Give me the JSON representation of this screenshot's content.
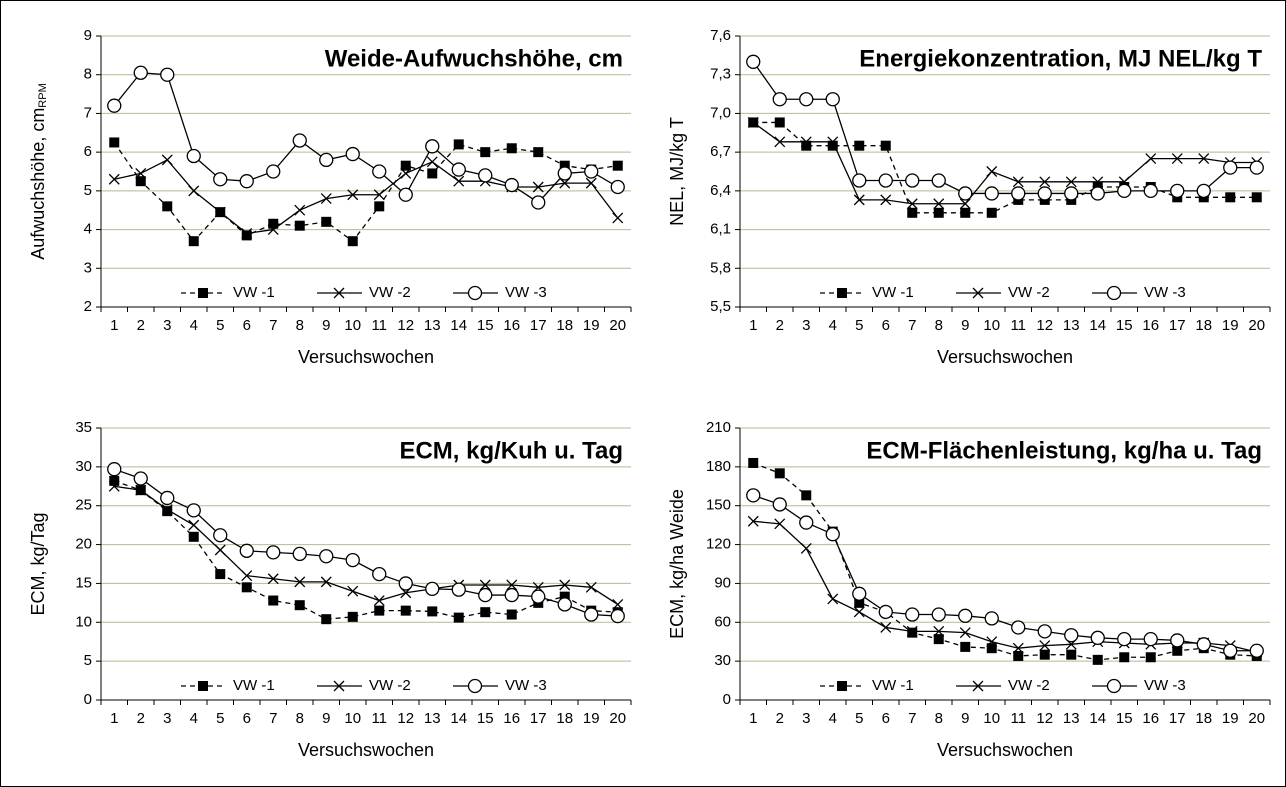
{
  "chart_data": [
    {
      "type": "line",
      "title": "Weide-Aufwuchshöhe, cm",
      "ylabel": "Aufwuchshöhe, cm",
      "ylabel_sub": "RPM",
      "xlabel": "Versuchswochen",
      "categories": [
        "1",
        "2",
        "3",
        "4",
        "5",
        "6",
        "7",
        "8",
        "9",
        "10",
        "11",
        "12",
        "13",
        "14",
        "15",
        "16",
        "17",
        "18",
        "19",
        "20"
      ],
      "ylim": [
        2,
        9
      ],
      "yticks": [
        2,
        3,
        4,
        5,
        6,
        7,
        8,
        9
      ],
      "grid": true,
      "series": [
        {
          "name": "VW -1",
          "color": "#000000",
          "marker": "square",
          "line_style": "dashed",
          "values": [
            6.25,
            5.25,
            4.6,
            3.7,
            4.45,
            3.85,
            4.15,
            4.1,
            4.2,
            3.7,
            4.6,
            5.65,
            5.45,
            6.2,
            6.0,
            6.1,
            6.0,
            5.65,
            5.55,
            5.65
          ]
        },
        {
          "name": "VW -2",
          "color": "#000000",
          "marker": "cross",
          "line_style": "solid",
          "values": [
            5.3,
            5.45,
            5.8,
            5.0,
            4.45,
            3.9,
            4.0,
            4.5,
            4.8,
            4.9,
            4.9,
            5.45,
            5.75,
            5.25,
            5.25,
            5.1,
            5.1,
            5.2,
            5.2,
            4.3
          ]
        },
        {
          "name": "VW -3",
          "color": "#000000",
          "marker": "circle",
          "line_style": "solid",
          "values": [
            7.2,
            8.05,
            8.0,
            5.9,
            5.3,
            5.25,
            5.5,
            6.3,
            5.8,
            5.95,
            5.5,
            4.9,
            6.15,
            5.55,
            5.4,
            5.15,
            4.7,
            5.45,
            5.5,
            5.1
          ]
        }
      ]
    },
    {
      "type": "line",
      "title": "Energiekonzentration, MJ NEL/kg T",
      "ylabel": "NEL, MJ/kg T",
      "xlabel": "Versuchswochen",
      "categories": [
        "1",
        "2",
        "3",
        "4",
        "5",
        "6",
        "7",
        "8",
        "9",
        "10",
        "11",
        "12",
        "13",
        "14",
        "15",
        "16",
        "17",
        "18",
        "19",
        "20"
      ],
      "ylim": [
        5.5,
        7.6
      ],
      "yticks": [
        {
          "value": 5.5,
          "label": "5,5"
        },
        {
          "value": 5.8,
          "label": "5,8"
        },
        {
          "value": 6.1,
          "label": "6,1"
        },
        {
          "value": 6.4,
          "label": "6,4"
        },
        {
          "value": 6.7,
          "label": "6,7"
        },
        {
          "value": 7.0,
          "label": "7,0"
        },
        {
          "value": 7.3,
          "label": "7,3"
        },
        {
          "value": 7.6,
          "label": "7,6"
        }
      ],
      "grid": true,
      "series": [
        {
          "name": "VW -1",
          "color": "#000000",
          "marker": "square",
          "line_style": "dashed",
          "values": [
            6.93,
            6.93,
            6.75,
            6.75,
            6.75,
            6.75,
            6.23,
            6.23,
            6.23,
            6.23,
            6.33,
            6.33,
            6.33,
            6.43,
            6.43,
            6.43,
            6.35,
            6.35,
            6.35,
            6.35
          ]
        },
        {
          "name": "VW -2",
          "color": "#000000",
          "marker": "cross",
          "line_style": "solid",
          "values": [
            6.93,
            6.78,
            6.78,
            6.78,
            6.33,
            6.33,
            6.3,
            6.3,
            6.3,
            6.55,
            6.47,
            6.47,
            6.47,
            6.47,
            6.47,
            6.65,
            6.65,
            6.65,
            6.62,
            6.62
          ]
        },
        {
          "name": "VW -3",
          "color": "#000000",
          "marker": "circle",
          "line_style": "solid",
          "values": [
            7.4,
            7.11,
            7.11,
            7.11,
            6.48,
            6.48,
            6.48,
            6.48,
            6.38,
            6.38,
            6.38,
            6.38,
            6.38,
            6.38,
            6.4,
            6.4,
            6.4,
            6.4,
            6.58,
            6.58
          ]
        }
      ]
    },
    {
      "type": "line",
      "title": "ECM, kg/Kuh u. Tag",
      "ylabel": "ECM, kg/Tag",
      "xlabel": "Versuchswochen",
      "categories": [
        "1",
        "2",
        "3",
        "4",
        "5",
        "6",
        "7",
        "8",
        "9",
        "10",
        "11",
        "12",
        "13",
        "14",
        "15",
        "16",
        "17",
        "18",
        "19",
        "20"
      ],
      "ylim": [
        0,
        35
      ],
      "yticks": [
        0,
        5,
        10,
        15,
        20,
        25,
        30,
        35
      ],
      "grid": true,
      "series": [
        {
          "name": "VW -1",
          "color": "#000000",
          "marker": "square",
          "line_style": "dashed",
          "values": [
            28.2,
            27,
            24.3,
            21,
            16.2,
            14.5,
            12.8,
            12.2,
            10.4,
            10.7,
            11.5,
            11.5,
            11.4,
            10.6,
            11.3,
            11,
            12.5,
            13.3,
            11.5,
            11.3
          ]
        },
        {
          "name": "VW -2",
          "color": "#000000",
          "marker": "cross",
          "line_style": "solid",
          "values": [
            27.5,
            27,
            24.5,
            22.5,
            19.3,
            16,
            15.6,
            15.2,
            15.2,
            14,
            12.8,
            13.8,
            14.3,
            14.8,
            14.8,
            14.8,
            14.5,
            14.8,
            14.5,
            12.3
          ]
        },
        {
          "name": "VW -3",
          "color": "#000000",
          "marker": "circle",
          "line_style": "solid",
          "values": [
            29.7,
            28.5,
            26,
            24.4,
            21.2,
            19.2,
            19,
            18.8,
            18.5,
            18,
            16.2,
            15,
            14.3,
            14.2,
            13.5,
            13.5,
            13.3,
            12.3,
            11,
            10.8
          ]
        }
      ]
    },
    {
      "type": "line",
      "title": "ECM-Flächenleistung, kg/ha u. Tag",
      "ylabel": "ECM, kg/ha Weide",
      "xlabel": "Versuchswochen",
      "categories": [
        "1",
        "2",
        "3",
        "4",
        "5",
        "6",
        "7",
        "8",
        "9",
        "10",
        "11",
        "12",
        "13",
        "14",
        "15",
        "16",
        "17",
        "18",
        "19",
        "20"
      ],
      "ylim": [
        0,
        210
      ],
      "yticks": [
        0,
        30,
        60,
        90,
        120,
        150,
        180,
        210
      ],
      "grid": true,
      "series": [
        {
          "name": "VW -1",
          "color": "#000000",
          "marker": "square",
          "line_style": "dashed",
          "values": [
            183,
            175,
            158,
            130,
            75,
            68,
            52,
            47,
            41,
            40,
            34,
            35,
            35,
            31,
            33,
            33,
            38,
            40,
            35,
            34
          ]
        },
        {
          "name": "VW -2",
          "color": "#000000",
          "marker": "cross",
          "line_style": "solid",
          "values": [
            138,
            136,
            117,
            78,
            68,
            56,
            53,
            53,
            52,
            45,
            40,
            42,
            43,
            45,
            44,
            43,
            44,
            44,
            42,
            37
          ]
        },
        {
          "name": "VW -3",
          "color": "#000000",
          "marker": "circle",
          "line_style": "solid",
          "values": [
            158,
            151,
            137,
            128,
            82,
            68,
            66,
            66,
            65,
            63,
            56,
            53,
            50,
            48,
            47,
            47,
            46,
            43,
            38,
            38
          ]
        }
      ]
    }
  ]
}
